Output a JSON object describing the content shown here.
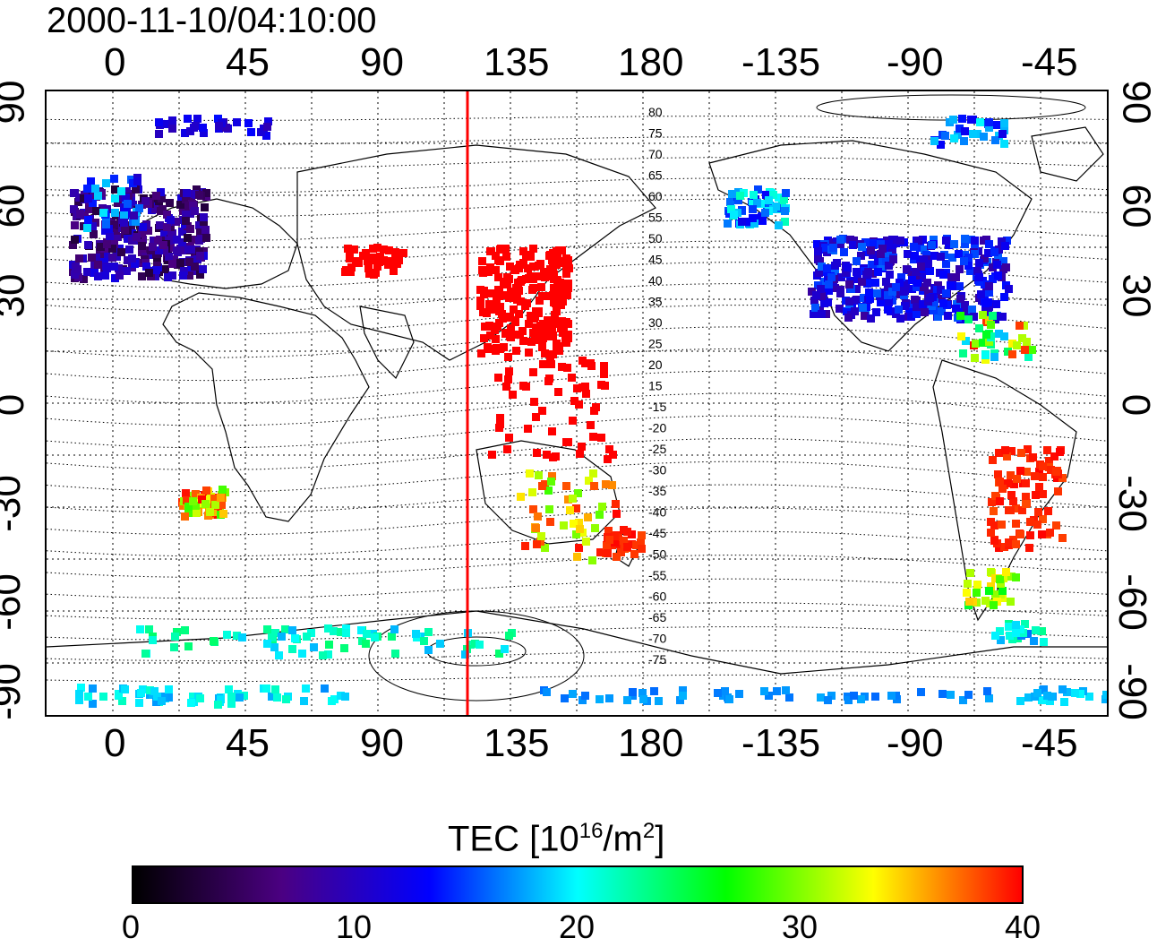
{
  "title": "2000-11-10/04:10:00",
  "map": {
    "lon_tick_labels": [
      "0",
      "45",
      "90",
      "135",
      "180",
      "-135",
      "-90",
      "-45"
    ],
    "lat_tick_labels": [
      "90",
      "60",
      "30",
      "0",
      "-30",
      "-60",
      "-90"
    ],
    "dip_contour_labels": [
      "80",
      "75",
      "70",
      "65",
      "60",
      "55",
      "50",
      "45",
      "40",
      "35",
      "30",
      "25",
      "20",
      "15",
      "-15",
      "-20",
      "-25",
      "-30",
      "-35",
      "-40",
      "-45",
      "-50",
      "-55",
      "-60",
      "-65",
      "-70",
      "-75"
    ],
    "meridian_marker_lon": 117,
    "meridian_marker_color": "#ff0000"
  },
  "colorbar": {
    "label_prefix": "TEC  [10",
    "label_exp1": "16",
    "label_mid": "/m",
    "label_exp2": "2",
    "label_suffix": "]",
    "range": [
      0,
      40
    ],
    "tick_labels": [
      "0",
      "10",
      "20",
      "30",
      "40"
    ],
    "colors": [
      "#000000",
      "#4b0082",
      "#0000ff",
      "#00ffff",
      "#00ff00",
      "#ffff00",
      "#ff0000"
    ]
  }
}
